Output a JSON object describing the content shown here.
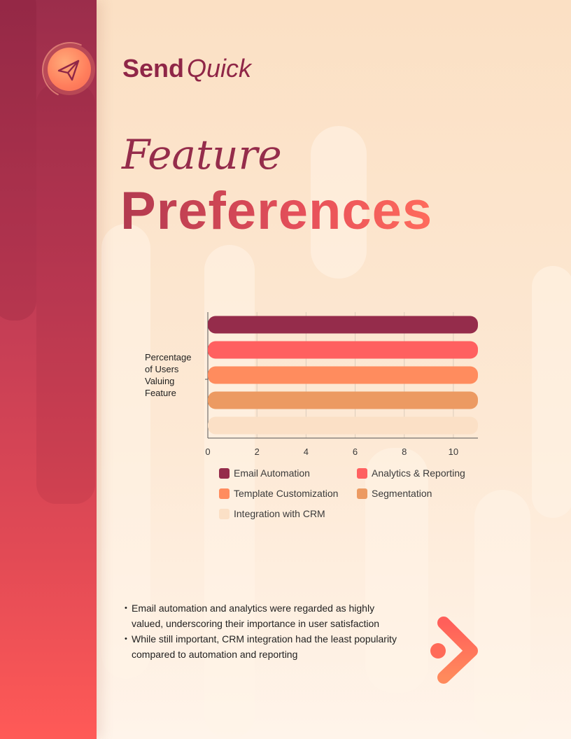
{
  "brand": {
    "part1": "Send",
    "part2": "Quick",
    "icon": "paper-plane-icon"
  },
  "title": {
    "line1": "Feature",
    "line2": "Preferences"
  },
  "colors": {
    "sidebar_top": "#9b2d4b",
    "sidebar_bottom": "#ff5a57",
    "accent": "#ff6b5c",
    "background": "#fbe0c4"
  },
  "chart_data": {
    "type": "bar",
    "orientation": "horizontal",
    "ylabel": "Percentage of Users Valuing Feature",
    "xlabel": "",
    "xlim": [
      0,
      11
    ],
    "xticks": [
      0,
      2,
      4,
      6,
      8,
      10
    ],
    "grid": true,
    "legend_position": "bottom",
    "series": [
      {
        "name": "Email Automation",
        "value": 11,
        "color": "#952c4b"
      },
      {
        "name": "Analytics & Reporting",
        "value": 11,
        "color": "#ff6060"
      },
      {
        "name": "Template Customization",
        "value": 11,
        "color": "#ff8c5e"
      },
      {
        "name": "Segmentation",
        "value": 11,
        "color": "#ec9a62"
      },
      {
        "name": "Integration with CRM",
        "value": 11,
        "color": "#fbe0c6"
      }
    ]
  },
  "notes": [
    "Email automation and analytics were regarded as highly valued, underscoring their importance in user satisfaction",
    "While still important, CRM integration had the least popularity compared to automation and reporting"
  ]
}
